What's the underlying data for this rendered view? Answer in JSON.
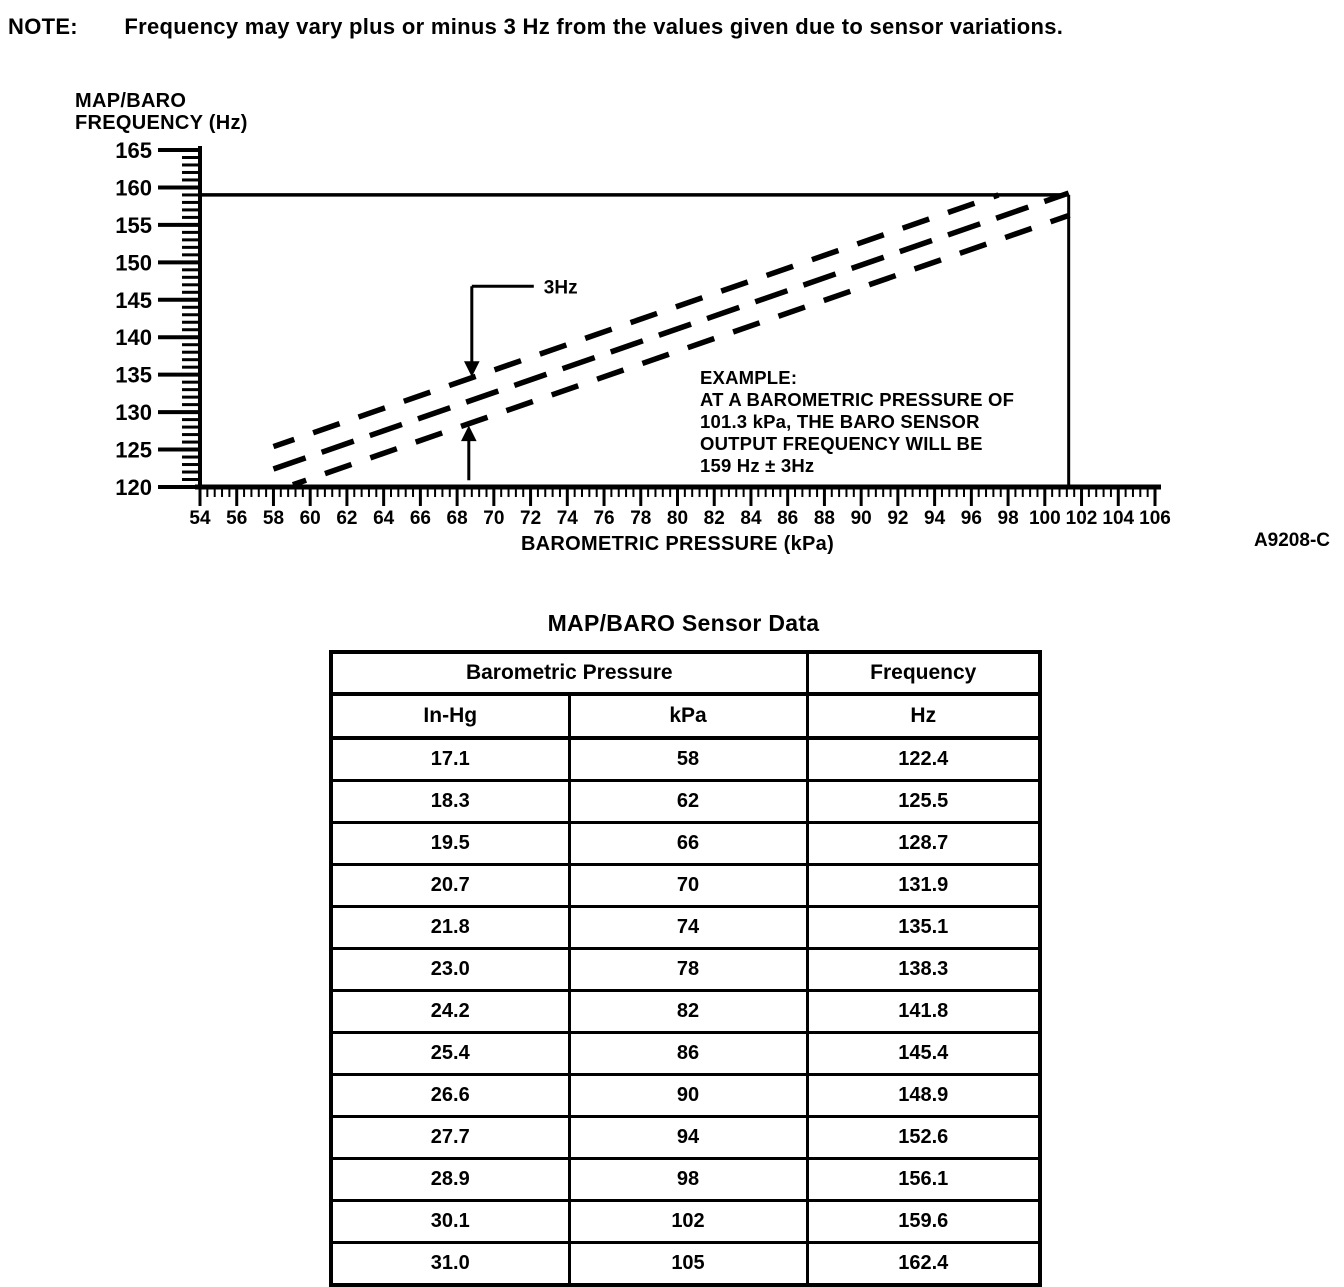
{
  "note": {
    "label": "NOTE:",
    "text": "Frequency may vary plus or minus 3 Hz from the values given due to sensor variations."
  },
  "chart_data": {
    "type": "line",
    "ylabel_lines": [
      "MAP/BARO",
      "FREQUENCY (Hz)"
    ],
    "xlabel": "BAROMETRIC PRESSURE (kPa)",
    "x_range": [
      54,
      106
    ],
    "y_range": [
      120,
      165
    ],
    "x_tick_step": 2,
    "x_minor_step": 0.4,
    "y_tick_step": 5,
    "y_minor_step": 1,
    "tolerance_hz": 3,
    "series": [
      {
        "name": "nominal-frequency",
        "x": [
          58,
          62,
          66,
          70,
          74,
          78,
          82,
          86,
          90,
          94,
          98,
          102,
          105
        ],
        "y": [
          122.4,
          125.5,
          128.7,
          131.9,
          135.1,
          138.3,
          141.8,
          145.4,
          148.9,
          152.6,
          156.1,
          159.6,
          162.4
        ]
      },
      {
        "name": "upper-tolerance",
        "offset_hz": 3
      },
      {
        "name": "lower-tolerance",
        "offset_hz": -3
      }
    ],
    "annotations": {
      "tolerance_label": "3Hz",
      "example_lines": [
        "EXAMPLE:",
        "AT A BAROMETRIC PRESSURE OF",
        "101.3 kPa, THE BARO SENSOR",
        "OUTPUT FREQUENCY WILL BE",
        "159 Hz ± 3Hz"
      ],
      "example_point": {
        "kpa": 101.3,
        "hz": 159
      },
      "figure_code": "A9208-C"
    }
  },
  "table": {
    "title": "MAP/BARO Sensor Data",
    "col_groups": [
      {
        "label": "Barometric Pressure",
        "span": 2
      },
      {
        "label": "Frequency",
        "span": 1
      }
    ],
    "columns": [
      "In-Hg",
      "kPa",
      "Hz"
    ],
    "rows": [
      [
        "17.1",
        "58",
        "122.4"
      ],
      [
        "18.3",
        "62",
        "125.5"
      ],
      [
        "19.5",
        "66",
        "128.7"
      ],
      [
        "20.7",
        "70",
        "131.9"
      ],
      [
        "21.8",
        "74",
        "135.1"
      ],
      [
        "23.0",
        "78",
        "138.3"
      ],
      [
        "24.2",
        "82",
        "141.8"
      ],
      [
        "25.4",
        "86",
        "145.4"
      ],
      [
        "26.6",
        "90",
        "148.9"
      ],
      [
        "27.7",
        "94",
        "152.6"
      ],
      [
        "28.9",
        "98",
        "156.1"
      ],
      [
        "30.1",
        "102",
        "159.6"
      ],
      [
        "31.0",
        "105",
        "162.4"
      ]
    ]
  }
}
